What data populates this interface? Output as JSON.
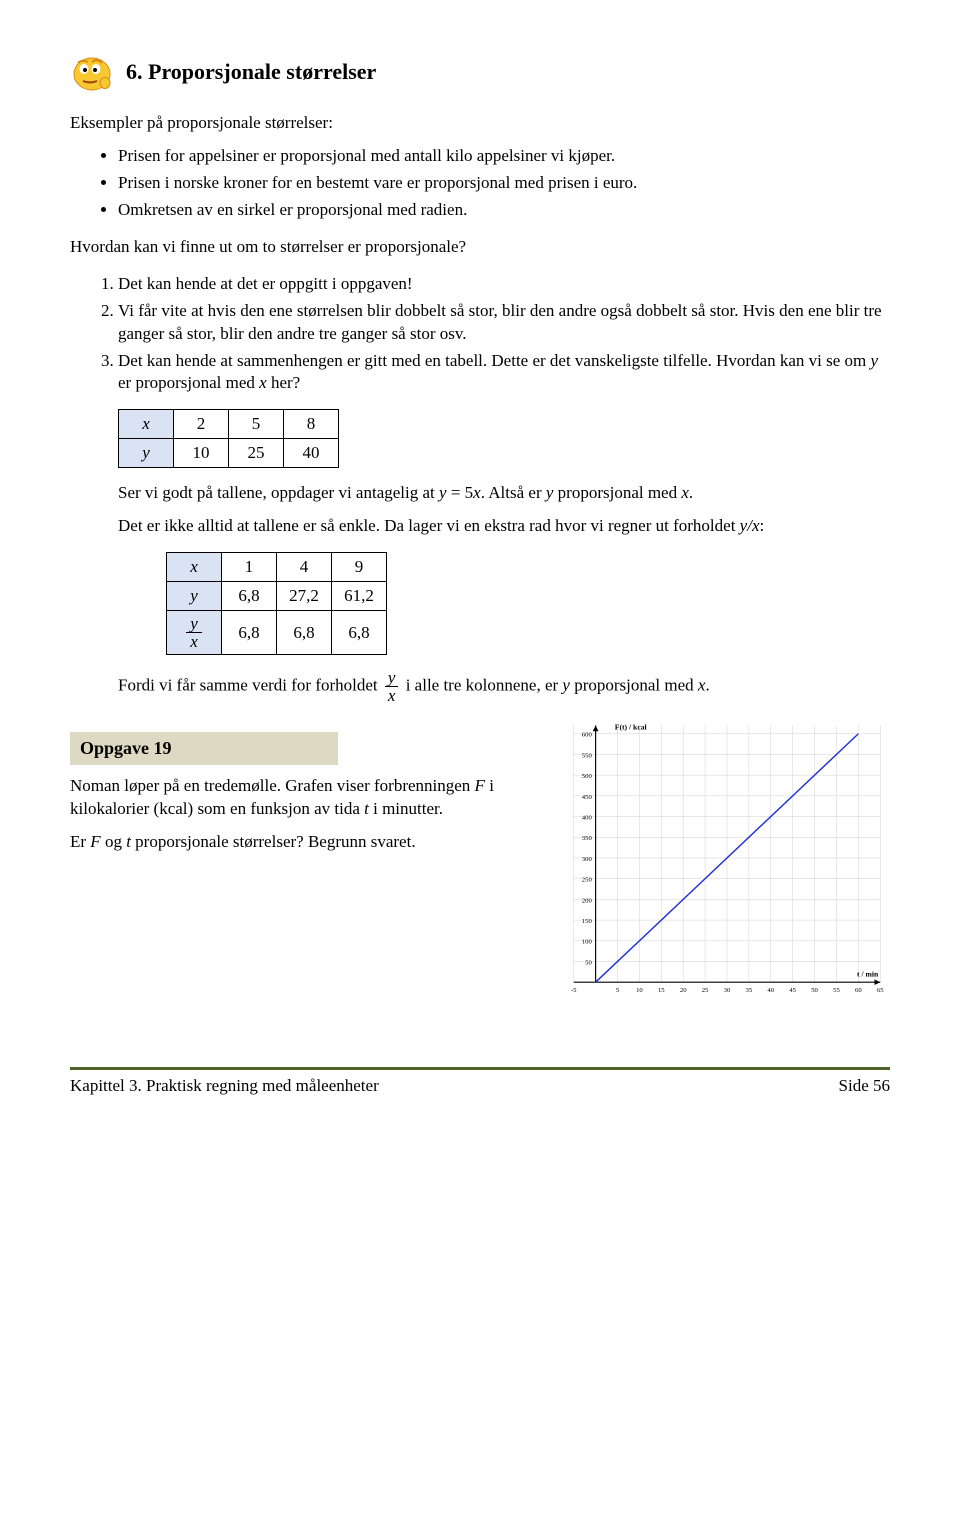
{
  "heading": "6. Proporsjonale størrelser",
  "intro": "Eksempler på proporsjonale størrelser:",
  "bullets": [
    "Prisen for appelsiner er proporsjonal med antall kilo appelsiner vi kjøper.",
    "Prisen i norske kroner for en bestemt vare er proporsjonal med prisen i euro.",
    "Omkretsen av en sirkel er proporsjonal med radien."
  ],
  "question": "Hvordan kan vi finne ut om to størrelser er proporsjonale?",
  "ordered_items": {
    "i1": "Det kan hende at det er oppgitt i oppgaven!",
    "i2": "Vi får vite at hvis den ene størrelsen blir dobbelt så stor, blir den andre også dobbelt så stor. Hvis den ene blir tre ganger så stor, blir den andre tre ganger så stor osv.",
    "i3_a": "Det kan hende at sammenhengen er gitt med en tabell. Dette er det vanskeligste tilfelle. Hvordan kan vi se om ",
    "i3_b": " er proporsjonal med ",
    "i3_c": " her?"
  },
  "table1": {
    "row_x_label": "x",
    "row_y_label": "y",
    "x": [
      "2",
      "5",
      "8"
    ],
    "y": [
      "10",
      "25",
      "40"
    ]
  },
  "p1_a": "Ser vi godt på tallene, oppdager vi antagelig at ",
  "p1_b": " = 5",
  "p1_c": ". Altså er ",
  "p1_d": " proporsjonal med ",
  "p1_e": ".",
  "p2_a": "Det er ikke alltid at tallene er så enkle. Da lager vi en ekstra rad hvor vi regner ut forholdet ",
  "p2_b": ":",
  "table2": {
    "row_x_label": "x",
    "row_y_label": "y",
    "x": [
      "1",
      "4",
      "9"
    ],
    "y": [
      "6,8",
      "27,2",
      "61,2"
    ],
    "ratio": [
      "6,8",
      "6,8",
      "6,8"
    ],
    "ratio_num": "y",
    "ratio_den": "x"
  },
  "conclusion_a": "Fordi vi får samme verdi for forholdet ",
  "conclusion_b": " i alle tre kolonnene, er ",
  "conclusion_c": " proporsjonal med ",
  "conclusion_d": ".",
  "oppgave": {
    "label": "Oppgave 19"
  },
  "task_p1_a": "Noman løper på en tredemølle. Grafen viser forbrenningen ",
  "task_p1_b": " i kilokalorier (kcal) som en funksjon av tida ",
  "task_p1_c": " i minutter.",
  "task_p2_a": "Er ",
  "task_p2_b": " og ",
  "task_p2_c": " proporsjonale størrelser? Begrunn svaret.",
  "chart": {
    "type": "line",
    "x_min": -5,
    "x_max": 65,
    "y_min": 0,
    "y_max": 620,
    "x_ticks": [
      -5,
      0,
      5,
      10,
      15,
      20,
      25,
      30,
      35,
      40,
      45,
      50,
      55,
      60,
      65
    ],
    "y_ticks": [
      50,
      100,
      150,
      200,
      250,
      300,
      350,
      400,
      450,
      500,
      550,
      600
    ],
    "x_label": "t / min",
    "y_label": "F(t) / kcal",
    "line_color": "#2030d8",
    "grid_color": "#d0d0d0",
    "axis_color": "#000000",
    "background": "#ffffff",
    "line_points": [
      [
        0,
        0
      ],
      [
        60,
        600
      ]
    ],
    "label_fontsize": 8,
    "tick_fontsize": 7
  },
  "footer": {
    "left": "Kapittel 3. Praktisk regning med måleenheter",
    "right": "Side 56"
  },
  "emoji": {
    "face_color": "#f8c830",
    "accent": "#d88a10"
  }
}
